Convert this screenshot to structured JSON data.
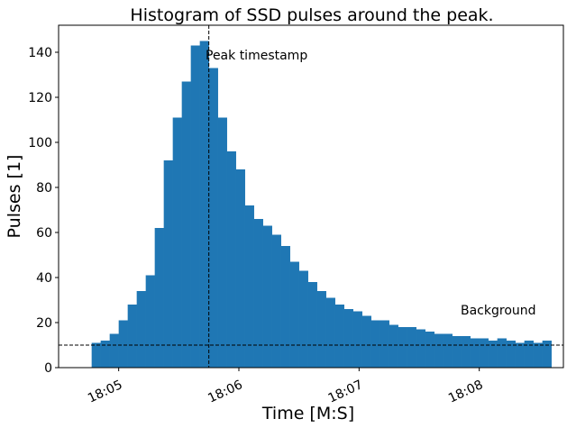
{
  "chart_data": {
    "type": "bar",
    "title": "Histogram of SSD pulses around the peak.",
    "xlabel": "Time [M:S]",
    "ylabel": "Pulses [1]",
    "x_tick_labels": [
      "18:05",
      "18:06",
      "18:07",
      "18:08"
    ],
    "x_tick_values_s": [
      0,
      60,
      120,
      180
    ],
    "x_origin_label": "18:05",
    "xlim_s": [
      -30,
      222
    ],
    "ylim": [
      0,
      152
    ],
    "y_ticks": [
      0,
      20,
      40,
      60,
      80,
      100,
      120,
      140
    ],
    "bin_start_s": -13.5,
    "bin_width_s": 4.5,
    "values": [
      11,
      12,
      15,
      21,
      28,
      34,
      41,
      62,
      92,
      111,
      127,
      143,
      145,
      133,
      111,
      96,
      88,
      72,
      66,
      63,
      59,
      54,
      47,
      43,
      38,
      34,
      31,
      28,
      26,
      25,
      23,
      21,
      21,
      19,
      18,
      18,
      17,
      16,
      15,
      15,
      14,
      14,
      13,
      13,
      12,
      13,
      12,
      11,
      12,
      11,
      12
    ],
    "color": "#1f77b4",
    "peak_line_x_s": 45,
    "peak_label": "Peak timestamp",
    "background_level": 10,
    "background_label": "Background",
    "grid": false
  }
}
